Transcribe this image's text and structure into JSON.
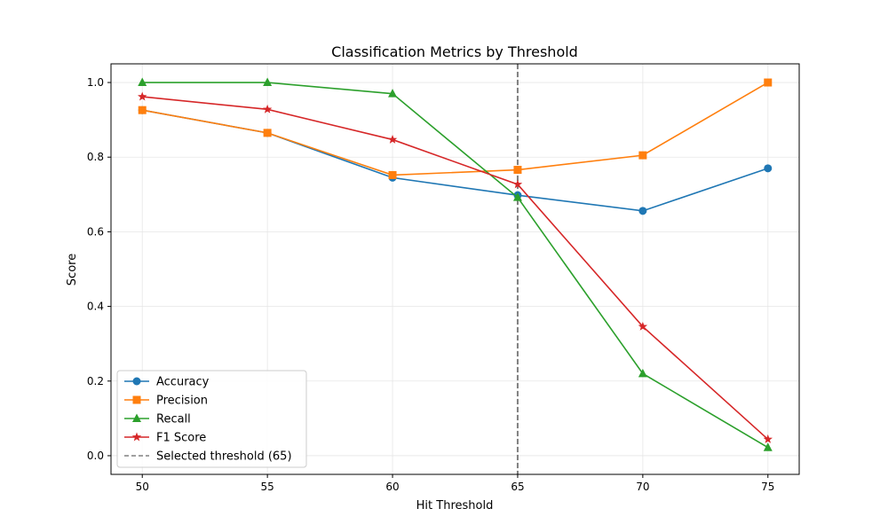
{
  "chart_data": {
    "type": "line",
    "title": "Classification Metrics by Threshold",
    "xlabel": "Hit Threshold",
    "ylabel": "Score",
    "x": [
      50,
      55,
      60,
      65,
      70,
      75
    ],
    "xticks": [
      "50",
      "55",
      "60",
      "65",
      "70",
      "75"
    ],
    "yticks": [
      "0.0",
      "0.2",
      "0.4",
      "0.6",
      "0.8",
      "1.0"
    ],
    "xlim": [
      48.75,
      76.25
    ],
    "ylim": [
      -0.05,
      1.05
    ],
    "grid": true,
    "legend_position": "lower-left",
    "series": [
      {
        "name": "Accuracy",
        "color": "#1f77b4",
        "marker": "circle",
        "values": [
          0.926,
          0.865,
          0.745,
          0.698,
          0.656,
          0.77
        ]
      },
      {
        "name": "Precision",
        "color": "#ff7f0e",
        "marker": "square",
        "values": [
          0.926,
          0.865,
          0.752,
          0.766,
          0.805,
          1.0
        ]
      },
      {
        "name": "Recall",
        "color": "#2ca02c",
        "marker": "triangle",
        "values": [
          1.0,
          1.0,
          0.97,
          0.692,
          0.22,
          0.022
        ]
      },
      {
        "name": "F1 Score",
        "color": "#d62728",
        "marker": "star",
        "values": [
          0.962,
          0.928,
          0.847,
          0.727,
          0.346,
          0.044
        ]
      }
    ],
    "reference_line": {
      "name": "Selected threshold (65)",
      "x": 65,
      "color": "#808080",
      "style": "dashed"
    }
  }
}
